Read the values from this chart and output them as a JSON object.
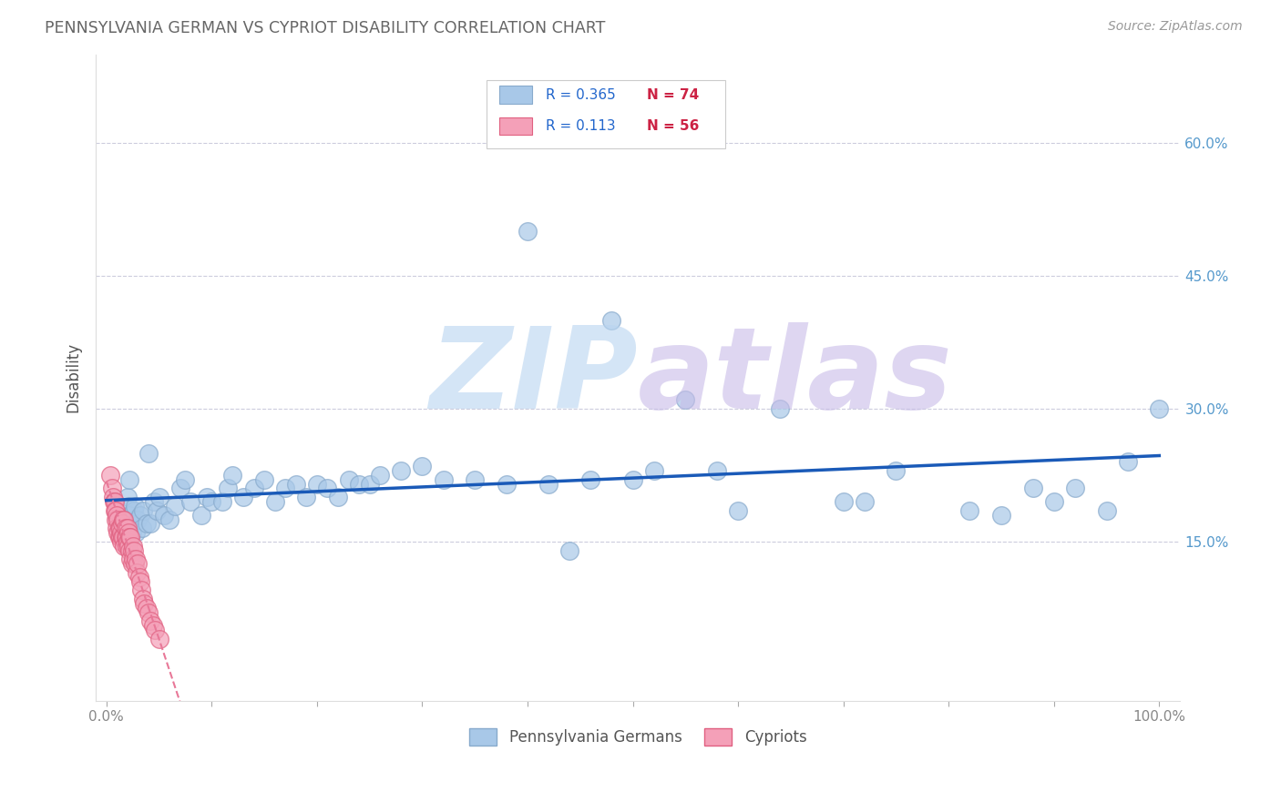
{
  "title": "PENNSYLVANIA GERMAN VS CYPRIOT DISABILITY CORRELATION CHART",
  "source_text": "Source: ZipAtlas.com",
  "ylabel": "Disability",
  "xlim": [
    -0.01,
    1.02
  ],
  "ylim": [
    -0.03,
    0.7
  ],
  "xtick_positions": [
    0.0,
    1.0
  ],
  "xticklabels": [
    "0.0%",
    "100.0%"
  ],
  "yticks": [
    0.15,
    0.3,
    0.45,
    0.6
  ],
  "yticklabels": [
    "15.0%",
    "30.0%",
    "45.0%",
    "60.0%"
  ],
  "pa_german_color": "#a8c8e8",
  "cypriot_color": "#f4a0b8",
  "pa_german_edge": "#88aacc",
  "cypriot_edge": "#e06080",
  "pa_german_line_color": "#1a5ab8",
  "cypriot_line_color": "#e87898",
  "grid_color": "#ccccdd",
  "background_color": "#ffffff",
  "pa_german_R": "0.365",
  "pa_german_N": "74",
  "cypriot_R": "0.113",
  "cypriot_N": "56",
  "pa_german_x": [
    0.018,
    0.02,
    0.021,
    0.022,
    0.022,
    0.023,
    0.024,
    0.025,
    0.026,
    0.027,
    0.028,
    0.03,
    0.032,
    0.034,
    0.035,
    0.038,
    0.04,
    0.042,
    0.045,
    0.048,
    0.05,
    0.055,
    0.06,
    0.065,
    0.07,
    0.075,
    0.08,
    0.09,
    0.095,
    0.1,
    0.11,
    0.115,
    0.12,
    0.13,
    0.14,
    0.15,
    0.16,
    0.17,
    0.18,
    0.19,
    0.2,
    0.21,
    0.22,
    0.23,
    0.24,
    0.25,
    0.26,
    0.28,
    0.3,
    0.32,
    0.35,
    0.38,
    0.4,
    0.42,
    0.44,
    0.46,
    0.48,
    0.5,
    0.52,
    0.55,
    0.58,
    0.6,
    0.64,
    0.7,
    0.72,
    0.75,
    0.82,
    0.85,
    0.88,
    0.9,
    0.92,
    0.95,
    0.97,
    1.0
  ],
  "pa_german_y": [
    0.175,
    0.2,
    0.19,
    0.22,
    0.18,
    0.17,
    0.16,
    0.175,
    0.185,
    0.19,
    0.16,
    0.175,
    0.18,
    0.165,
    0.185,
    0.17,
    0.25,
    0.17,
    0.195,
    0.185,
    0.2,
    0.18,
    0.175,
    0.19,
    0.21,
    0.22,
    0.195,
    0.18,
    0.2,
    0.195,
    0.195,
    0.21,
    0.225,
    0.2,
    0.21,
    0.22,
    0.195,
    0.21,
    0.215,
    0.2,
    0.215,
    0.21,
    0.2,
    0.22,
    0.215,
    0.215,
    0.225,
    0.23,
    0.235,
    0.22,
    0.22,
    0.215,
    0.5,
    0.215,
    0.14,
    0.22,
    0.4,
    0.22,
    0.23,
    0.31,
    0.23,
    0.185,
    0.3,
    0.195,
    0.195,
    0.23,
    0.185,
    0.18,
    0.21,
    0.195,
    0.21,
    0.185,
    0.24,
    0.3
  ],
  "cypriot_x": [
    0.004,
    0.005,
    0.006,
    0.007,
    0.008,
    0.008,
    0.009,
    0.009,
    0.01,
    0.01,
    0.011,
    0.011,
    0.012,
    0.012,
    0.013,
    0.013,
    0.014,
    0.014,
    0.015,
    0.015,
    0.016,
    0.016,
    0.017,
    0.017,
    0.018,
    0.018,
    0.019,
    0.019,
    0.02,
    0.02,
    0.021,
    0.021,
    0.022,
    0.022,
    0.023,
    0.023,
    0.024,
    0.024,
    0.025,
    0.025,
    0.026,
    0.027,
    0.028,
    0.029,
    0.03,
    0.031,
    0.032,
    0.033,
    0.035,
    0.036,
    0.038,
    0.04,
    0.042,
    0.044,
    0.046,
    0.05
  ],
  "cypriot_y": [
    0.225,
    0.21,
    0.2,
    0.195,
    0.195,
    0.185,
    0.185,
    0.175,
    0.18,
    0.165,
    0.175,
    0.16,
    0.165,
    0.155,
    0.165,
    0.155,
    0.16,
    0.15,
    0.17,
    0.155,
    0.175,
    0.155,
    0.175,
    0.145,
    0.165,
    0.155,
    0.155,
    0.145,
    0.165,
    0.15,
    0.16,
    0.145,
    0.155,
    0.14,
    0.155,
    0.13,
    0.14,
    0.125,
    0.145,
    0.13,
    0.14,
    0.125,
    0.13,
    0.115,
    0.125,
    0.11,
    0.105,
    0.095,
    0.085,
    0.08,
    0.075,
    0.07,
    0.06,
    0.055,
    0.05,
    0.04
  ]
}
